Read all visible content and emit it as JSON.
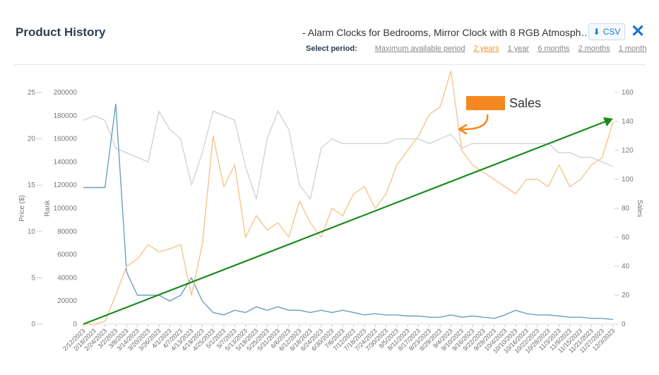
{
  "header": {
    "title": "Product History",
    "product": "- Alarm Clocks for Bedrooms, Mirror Clock with 8 RGB Atmosph…",
    "csv_label": "CSV",
    "select_period_label": "Select period:",
    "periods": [
      "Maximum available period",
      "2 years",
      "1 year",
      "6 months",
      "2 months",
      "1 month"
    ],
    "active_period": "2 years"
  },
  "chart_data": {
    "type": "line",
    "x": [
      "2/12/2023",
      "2/18/2023",
      "2/24/2023",
      "3/2/2023",
      "3/8/2023",
      "3/14/2023",
      "3/20/2023",
      "3/26/2023",
      "4/1/2023",
      "4/7/2023",
      "4/13/2023",
      "4/19/2023",
      "4/25/2023",
      "5/1/2023",
      "5/7/2023",
      "5/13/2023",
      "5/19/2023",
      "5/25/2023",
      "5/31/2023",
      "6/6/2023",
      "6/12/2023",
      "6/18/2023",
      "6/24/2023",
      "6/30/2023",
      "7/6/2023",
      "7/12/2023",
      "7/18/2023",
      "7/24/2023",
      "7/30/2023",
      "8/5/2023",
      "8/11/2023",
      "8/17/2023",
      "8/23/2023",
      "8/29/2023",
      "9/4/2023",
      "9/10/2023",
      "9/16/2023",
      "9/22/2023",
      "9/28/2023",
      "10/4/2023",
      "10/10/2023",
      "10/16/2023",
      "10/22/2023",
      "10/28/2023",
      "11/3/2023",
      "11/9/2023",
      "11/15/2023",
      "11/21/2023",
      "11/27/2023",
      "12/3/2023"
    ],
    "axes": {
      "price": {
        "label": "Price ($)",
        "ticks": [
          0,
          5,
          10,
          15,
          20,
          25
        ],
        "range": [
          0,
          25
        ]
      },
      "rank": {
        "label": "Rank",
        "ticks": [
          0,
          20000,
          40000,
          60000,
          80000,
          100000,
          120000,
          140000,
          160000,
          180000,
          200000
        ],
        "range": [
          0,
          200000
        ]
      },
      "sales": {
        "label": "Sales",
        "ticks": [
          0,
          20,
          40,
          60,
          80,
          100,
          120,
          140,
          160
        ],
        "range": [
          0,
          160
        ]
      }
    },
    "series": [
      {
        "name": "Sales",
        "axis": "sales",
        "color": "#f5c58a",
        "values": [
          0,
          0,
          2,
          20,
          40,
          45,
          55,
          50,
          52,
          55,
          20,
          55,
          130,
          95,
          110,
          60,
          75,
          65,
          70,
          60,
          85,
          70,
          60,
          80,
          75,
          90,
          95,
          80,
          90,
          110,
          120,
          130,
          145,
          150,
          175,
          120,
          110,
          105,
          100,
          95,
          90,
          100,
          100,
          95,
          110,
          95,
          100,
          110,
          115,
          140
        ]
      },
      {
        "name": "Rank",
        "axis": "rank",
        "color": "#6a9fc0",
        "values": [
          118000,
          118000,
          118000,
          190000,
          45000,
          25000,
          25000,
          25000,
          20000,
          25000,
          40000,
          20000,
          10000,
          8000,
          12000,
          10000,
          15000,
          12000,
          15000,
          12000,
          12000,
          10000,
          12000,
          10000,
          12000,
          10000,
          8000,
          9000,
          8000,
          8000,
          7000,
          7000,
          6000,
          6000,
          8000,
          6000,
          7000,
          6000,
          5000,
          8000,
          12000,
          9000,
          8000,
          8000,
          7000,
          6000,
          6000,
          5000,
          5000,
          4000
        ]
      },
      {
        "name": "Price",
        "axis": "price",
        "color": "#cfd4d8",
        "values": [
          22,
          22.5,
          22,
          19,
          18.5,
          18,
          17.5,
          23,
          21,
          20,
          15,
          18.5,
          23,
          22.5,
          22,
          17,
          13.5,
          20,
          23,
          21,
          15,
          13.5,
          19,
          20,
          19.5,
          19.5,
          19.5,
          19.5,
          19.5,
          20,
          20,
          20,
          19.5,
          20,
          20.5,
          19,
          19.5,
          19.5,
          19.5,
          19.5,
          19.5,
          19.5,
          19.5,
          19.5,
          18.5,
          18.5,
          18,
          18,
          17.5,
          17
        ]
      }
    ],
    "annotation": {
      "label": "Sales",
      "color": "#f5881f"
    },
    "trend_line_color": "#1a8a1a"
  }
}
